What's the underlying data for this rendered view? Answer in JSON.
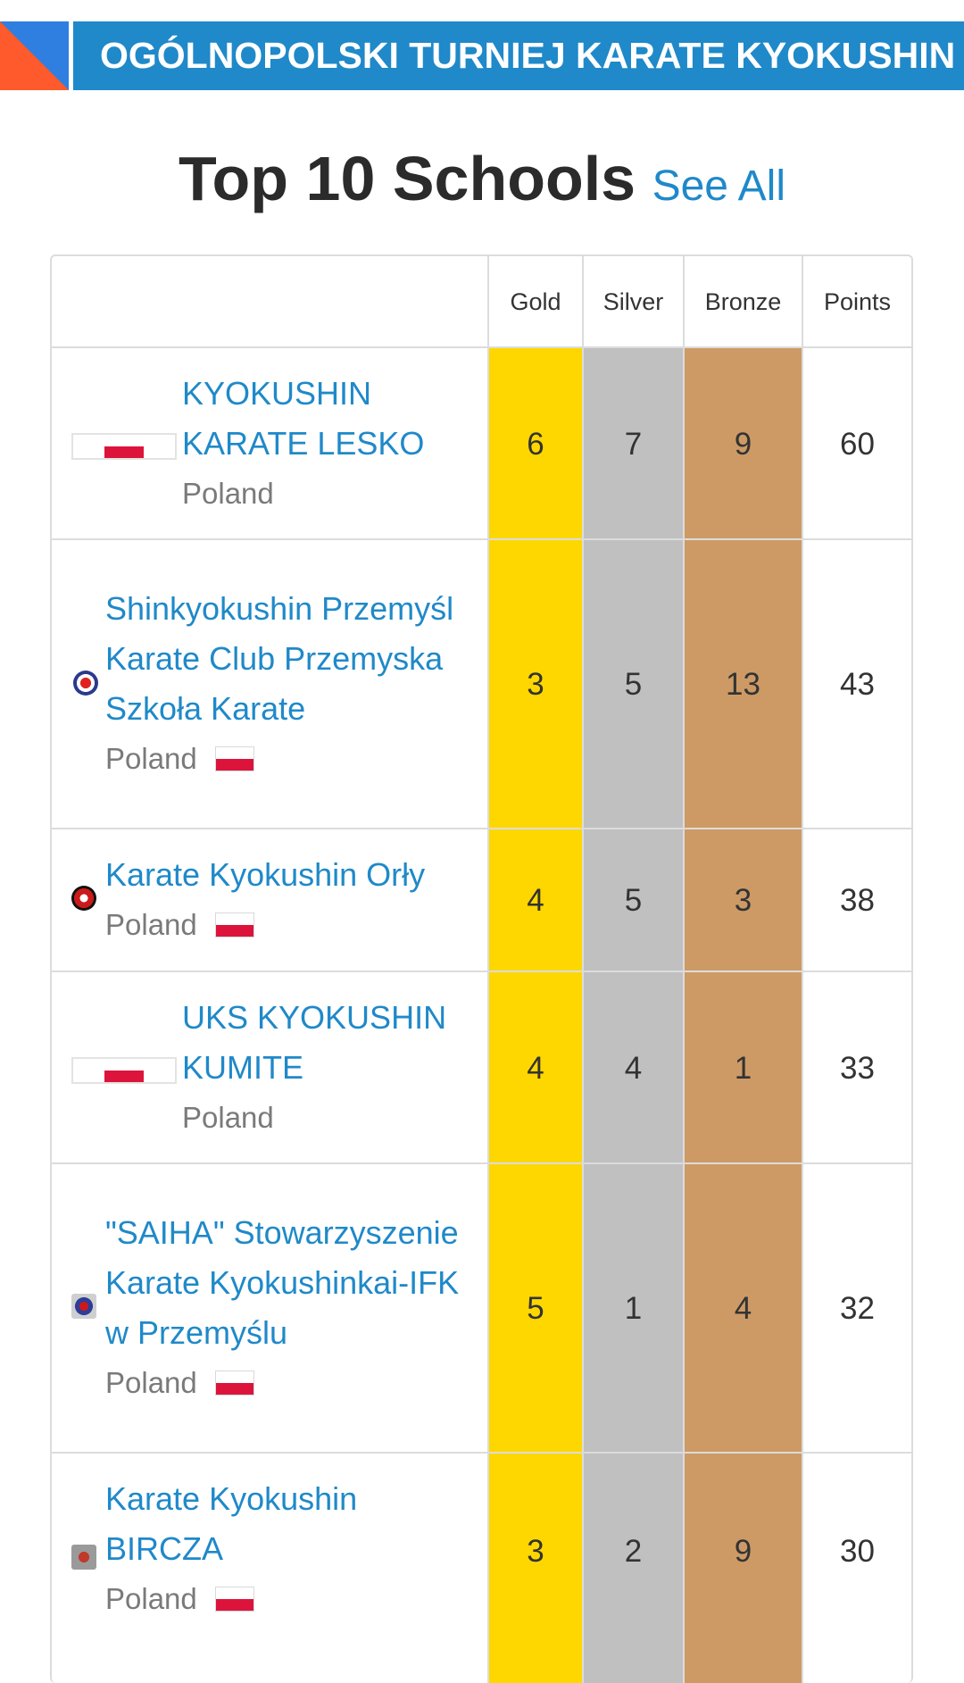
{
  "banner": {
    "title": "OGÓLNOPOLSKI TURNIEJ KARATE KYOKUSHIN"
  },
  "heading": {
    "title": "Top 10 Schools",
    "link": "See All"
  },
  "table": {
    "columns": [
      "Gold",
      "Silver",
      "Bronze",
      "Points"
    ],
    "medal_colors": {
      "gold": "#ffd700",
      "silver": "#c0c0c0",
      "bronze": "#cd9a66"
    },
    "rows": [
      {
        "name": "KYOKUSHIN KARATE LESKO",
        "country": "Poland",
        "gold": "6",
        "silver": "7",
        "bronze": "9",
        "points": "60"
      },
      {
        "name": "Shinkyokushin Przemyśl Karate Club Przemyska Szkoła Karate",
        "country": "Poland",
        "gold": "3",
        "silver": "5",
        "bronze": "13",
        "points": "43"
      },
      {
        "name": "Karate Kyokushin Orły",
        "country": "Poland",
        "gold": "4",
        "silver": "5",
        "bronze": "3",
        "points": "38"
      },
      {
        "name": "UKS KYOKUSHIN KUMITE",
        "country": "Poland",
        "gold": "4",
        "silver": "4",
        "bronze": "1",
        "points": "33"
      },
      {
        "name": "\"SAIHA\" Stowarzyszenie Karate Kyokushinkai-IFK w Przemyślu",
        "country": "Poland",
        "gold": "5",
        "silver": "1",
        "bronze": "4",
        "points": "32"
      },
      {
        "name": "Karate Kyokushin BIRCZA",
        "country": "Poland",
        "gold": "3",
        "silver": "2",
        "bronze": "9",
        "points": "30"
      }
    ]
  }
}
